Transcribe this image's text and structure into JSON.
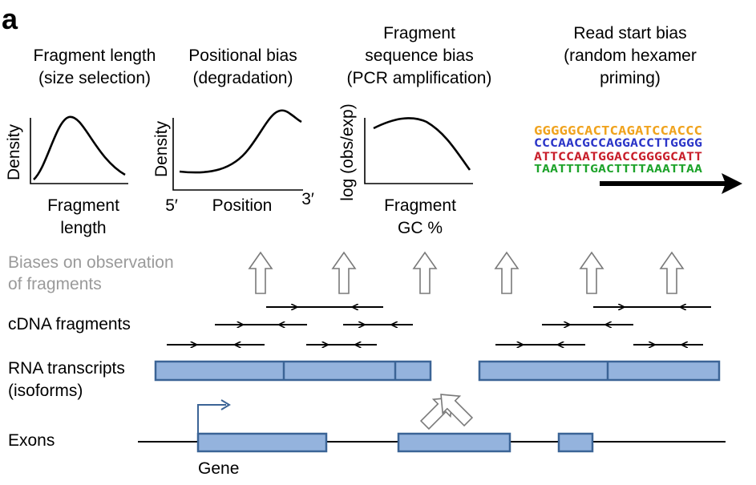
{
  "panel_label": "a",
  "plots": {
    "fragment_length": {
      "title_line1": "Fragment length",
      "title_line2": "(size selection)",
      "ylabel": "Density",
      "xlabel_line1": "Fragment",
      "xlabel_line2": "length"
    },
    "positional_bias": {
      "title_line1": "Positional bias",
      "title_line2": "(degradation)",
      "ylabel": "Density",
      "x_start": "5′",
      "x_mid": "Position",
      "x_end": "3′"
    },
    "sequence_bias": {
      "title_line1": "Fragment",
      "title_line2": "sequence bias",
      "title_line3": "(PCR amplification)",
      "ylabel": "log (obs/exp)",
      "xlabel_line1": "Fragment",
      "xlabel_line2": "GC %"
    },
    "read_start_bias": {
      "title_line1": "Read start bias",
      "title_line2": "(random hexamer",
      "title_line3": "priming)",
      "logo_rows": [
        {
          "text": "GGGGGCACTCAGATCCACCC",
          "color": "#f0a31e"
        },
        {
          "text": "CCCAACGCCAGGACCTTGGGG",
          "color": "#2b35c8"
        },
        {
          "text": "ATTCCAATGGACCGGGGCATT",
          "color": "#c81e2a"
        },
        {
          "text": "TAATTTTGACTTTTAAATTAA",
          "color": "#1ea32b"
        }
      ]
    }
  },
  "labels": {
    "biases_line1": "Biases on observation",
    "biases_line2": "of fragments",
    "cdna": "cDNA fragments",
    "rna_line1": "RNA transcripts",
    "rna_line2": "(isoforms)",
    "exons": "Exons",
    "gene": "Gene"
  },
  "colors": {
    "exon_fill": "#94b3dd",
    "exon_stroke": "#3b6496",
    "arrow_outline": "#7a7a7a",
    "gray_text": "#9a9a9a"
  }
}
